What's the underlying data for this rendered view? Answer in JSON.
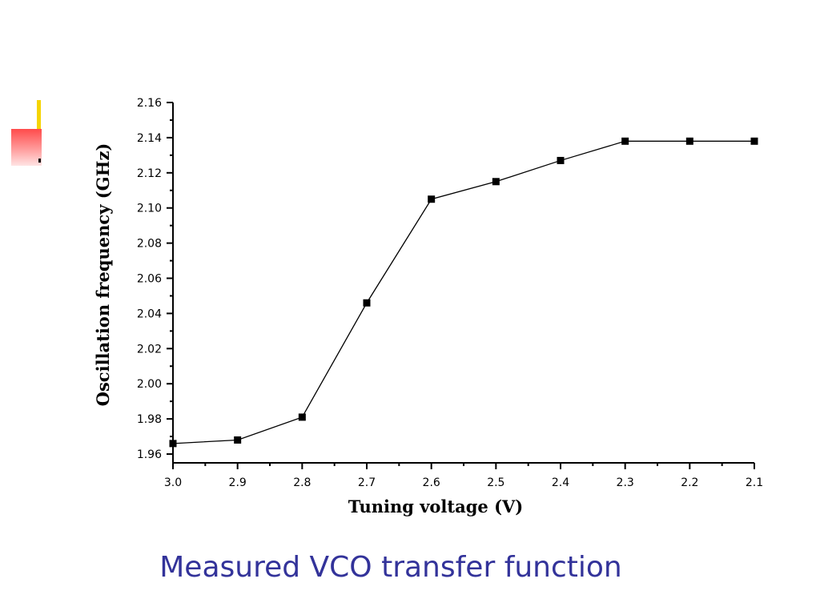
{
  "chart_data": {
    "type": "line",
    "xlabel": "Tuning voltage (V)",
    "ylabel": "Oscillation frequency (GHz)",
    "xlim": [
      3.0,
      2.1
    ],
    "ylim": [
      1.955,
      2.16
    ],
    "x_reversed": true,
    "x_ticks": [
      "3.0",
      "2.9",
      "2.8",
      "2.7",
      "2.6",
      "2.5",
      "2.4",
      "2.3",
      "2.2",
      "2.1"
    ],
    "y_ticks": [
      "1.96",
      "1.98",
      "2.00",
      "2.02",
      "2.04",
      "2.06",
      "2.08",
      "2.10",
      "2.12",
      "2.14",
      "2.16"
    ],
    "grid": false,
    "series": [
      {
        "x": [
          3.0,
          2.9,
          2.8,
          2.7,
          2.6,
          2.5,
          2.4,
          2.3,
          2.2,
          2.1
        ],
        "y": [
          1.966,
          1.968,
          1.981,
          2.046,
          2.105,
          2.115,
          2.127,
          2.138,
          2.138,
          2.138
        ],
        "marker": "square",
        "color": "#000000"
      }
    ]
  },
  "caption": "Measured VCO transfer function"
}
